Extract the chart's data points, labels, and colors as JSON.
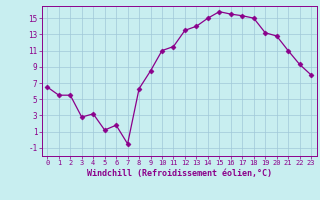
{
  "x": [
    0,
    1,
    2,
    3,
    4,
    5,
    6,
    7,
    8,
    9,
    10,
    11,
    12,
    13,
    14,
    15,
    16,
    17,
    18,
    19,
    20,
    21,
    22,
    23
  ],
  "y": [
    6.5,
    5.5,
    5.5,
    2.8,
    3.2,
    1.2,
    1.8,
    -0.5,
    6.3,
    8.5,
    11.0,
    11.5,
    13.5,
    14.0,
    15.0,
    15.8,
    15.5,
    15.3,
    15.0,
    13.2,
    12.8,
    11.0,
    9.3,
    8.0
  ],
  "line_color": "#8B008B",
  "marker": "D",
  "marker_size": 2.5,
  "bg_color": "#c8eef0",
  "grid_color": "#a0c8d8",
  "axis_color": "#8B008B",
  "xlabel": "Windchill (Refroidissement éolien,°C)",
  "xlabel_fontsize": 6,
  "yticks": [
    -1,
    1,
    3,
    5,
    7,
    9,
    11,
    13,
    15
  ],
  "xticks": [
    0,
    1,
    2,
    3,
    4,
    5,
    6,
    7,
    8,
    9,
    10,
    11,
    12,
    13,
    14,
    15,
    16,
    17,
    18,
    19,
    20,
    21,
    22,
    23
  ],
  "ylim": [
    -2,
    16.5
  ],
  "xlim": [
    -0.5,
    23.5
  ]
}
